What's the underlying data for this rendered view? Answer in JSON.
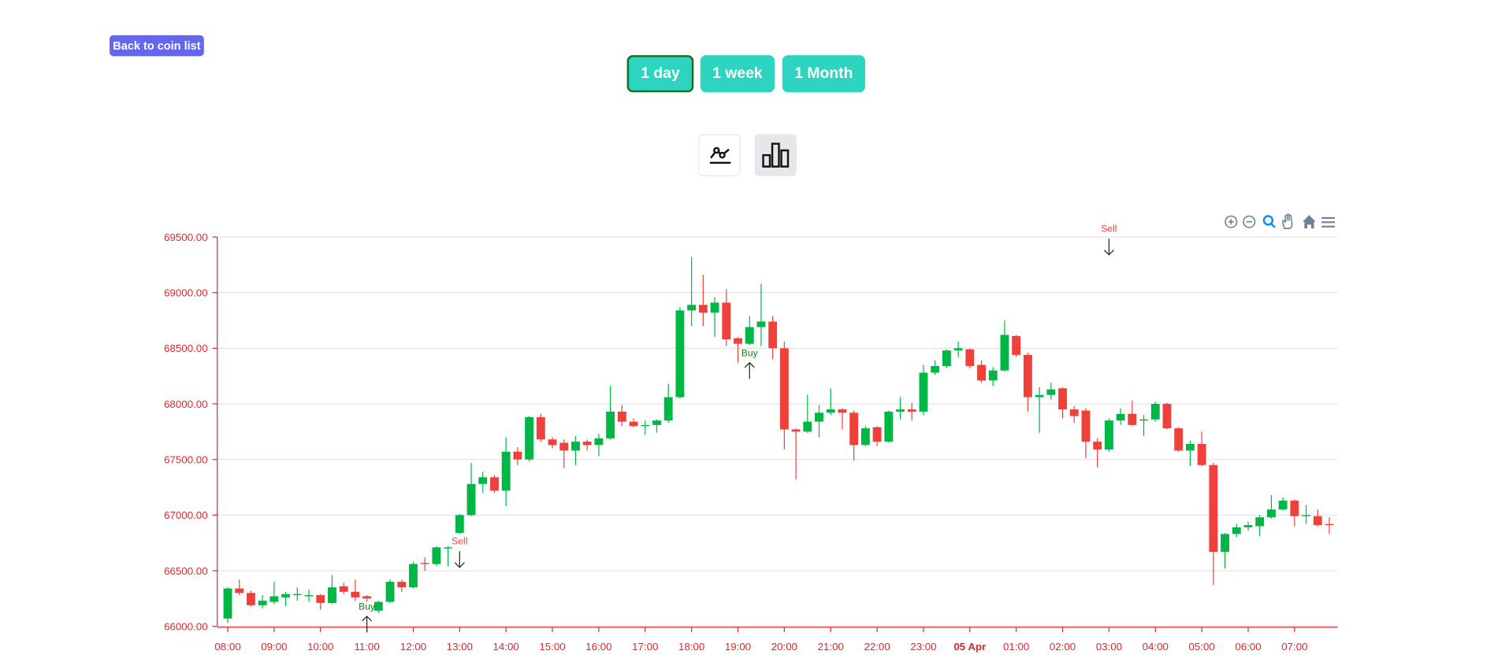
{
  "header": {
    "back_button": "Back to coin list",
    "ranges": [
      "1 day",
      "1 week",
      "1 Month"
    ]
  },
  "chart_data": {
    "type": "candlestick",
    "up_color": "#00b746",
    "down_color": "#ef403c",
    "grid": true,
    "categories": [
      "08:00",
      null,
      null,
      null,
      "09:00",
      null,
      null,
      null,
      "10:00",
      null,
      null,
      null,
      "11:00",
      null,
      null,
      null,
      "12:00",
      null,
      null,
      null,
      "13:00",
      null,
      null,
      null,
      "14:00",
      null,
      null,
      null,
      "15:00",
      null,
      null,
      null,
      "16:00",
      null,
      null,
      null,
      "17:00",
      null,
      null,
      null,
      "18:00",
      null,
      null,
      null,
      "19:00",
      null,
      null,
      null,
      "20:00",
      null,
      null,
      null,
      "21:00",
      null,
      null,
      null,
      "22:00",
      null,
      null,
      null,
      "23:00",
      null,
      null,
      null,
      "05 Apr",
      null,
      null,
      null,
      "01:00",
      null,
      null,
      null,
      "02:00",
      null,
      null,
      null,
      "03:00",
      null,
      null,
      null,
      "04:00",
      null,
      null,
      null,
      "05:00",
      null,
      null,
      null,
      "06:00",
      null,
      null,
      null,
      "07:00",
      null,
      null,
      null
    ],
    "open": [
      66070,
      66340,
      66300,
      66190,
      66220,
      66260,
      66280,
      66270,
      66280,
      66210,
      66360,
      66310,
      66270,
      66140,
      66220,
      66400,
      66350,
      66570,
      66560,
      66700,
      66840,
      67000,
      67280,
      67340,
      67220,
      67570,
      67500,
      67880,
      67680,
      67650,
      67580,
      67660,
      67630,
      67690,
      67930,
      67840,
      67800,
      67810,
      67850,
      68060,
      68840,
      68890,
      68820,
      68910,
      68590,
      68540,
      68690,
      68740,
      68500,
      67770,
      67750,
      67840,
      67920,
      67950,
      67920,
      67630,
      67790,
      67660,
      67930,
      67950,
      67930,
      68280,
      68340,
      68480,
      68490,
      68350,
      68210,
      68300,
      68610,
      68440,
      68060,
      68080,
      68140,
      67950,
      67940,
      67660,
      67590,
      67850,
      67910,
      67850,
      67860,
      68000,
      67780,
      67580,
      67640,
      67450,
      66670,
      66830,
      66890,
      66900,
      66980,
      67050,
      67130,
      66990,
      66990,
      66920
    ],
    "high": [
      66350,
      66420,
      66320,
      66280,
      66400,
      66310,
      66350,
      66330,
      66290,
      66460,
      66390,
      66420,
      66280,
      66230,
      66420,
      66420,
      66580,
      66620,
      66720,
      66720,
      67010,
      67470,
      67390,
      67360,
      67700,
      67610,
      67890,
      67910,
      67700,
      67680,
      67710,
      67680,
      67730,
      68160,
      67990,
      67870,
      67850,
      67860,
      68180,
      68870,
      69320,
      69160,
      68960,
      69030,
      68600,
      68790,
      69080,
      68790,
      68560,
      67780,
      68080,
      67990,
      68140,
      67960,
      67940,
      67800,
      67800,
      67940,
      68060,
      68010,
      68350,
      68390,
      68490,
      68560,
      68500,
      68390,
      68330,
      68750,
      68620,
      68460,
      68150,
      68190,
      68150,
      67980,
      67960,
      67690,
      67870,
      67960,
      68030,
      67900,
      68020,
      68010,
      67790,
      67670,
      67750,
      67470,
      66840,
      66920,
      66940,
      67000,
      67180,
      67160,
      67140,
      67090,
      67050,
      66980
    ],
    "low": [
      66030,
      66280,
      66180,
      66160,
      66200,
      66180,
      66230,
      66220,
      66150,
      66200,
      66290,
      66230,
      66220,
      66120,
      66210,
      66310,
      66340,
      66500,
      66540,
      66540,
      66830,
      66990,
      67200,
      67200,
      67080,
      67450,
      67480,
      67660,
      67600,
      67420,
      67450,
      67580,
      67530,
      67680,
      67800,
      67790,
      67720,
      67740,
      67830,
      68050,
      68700,
      68700,
      68600,
      68520,
      68370,
      68530,
      68520,
      68400,
      67590,
      67320,
      67740,
      67700,
      67900,
      67770,
      67490,
      67620,
      67620,
      67650,
      67860,
      67850,
      67900,
      68260,
      68320,
      68420,
      68320,
      68190,
      68160,
      68290,
      68420,
      67930,
      67740,
      68040,
      67870,
      67830,
      67510,
      67430,
      67570,
      67810,
      67800,
      67710,
      67840,
      67770,
      67570,
      67440,
      67440,
      66370,
      66520,
      66800,
      66860,
      66810,
      66970,
      67040,
      66900,
      66920,
      66900,
      66830
    ],
    "close": [
      66340,
      66300,
      66190,
      66230,
      66270,
      66290,
      66290,
      66280,
      66210,
      66350,
      66310,
      66260,
      66250,
      66220,
      66400,
      66350,
      66560,
      66560,
      66710,
      66710,
      67000,
      67280,
      67340,
      67220,
      67570,
      67500,
      67880,
      67680,
      67630,
      67580,
      67660,
      67630,
      67690,
      67930,
      67840,
      67800,
      67810,
      67850,
      68060,
      68840,
      68890,
      68820,
      68910,
      68580,
      68540,
      68690,
      68740,
      68500,
      67770,
      67750,
      67840,
      67920,
      67950,
      67920,
      67630,
      67780,
      67660,
      67930,
      67950,
      67930,
      68280,
      68340,
      68480,
      68500,
      68340,
      68210,
      68300,
      68620,
      68440,
      68060,
      68080,
      68130,
      67950,
      67890,
      67660,
      67590,
      67850,
      67910,
      67810,
      67860,
      68000,
      67780,
      67580,
      67640,
      67450,
      66670,
      66830,
      66890,
      66910,
      66980,
      67050,
      67130,
      66990,
      67000,
      66910,
      66910
    ],
    "ylim": [
      66000,
      69500
    ],
    "yticks": [
      {
        "value": 66000,
        "label": "66000.00"
      },
      {
        "value": 66500,
        "label": "66500.00"
      },
      {
        "value": 67000,
        "label": "67000.00"
      },
      {
        "value": 67500,
        "label": "67500.00"
      },
      {
        "value": 68000,
        "label": "68000.00"
      },
      {
        "value": 68500,
        "label": "68500.00"
      },
      {
        "value": 69000,
        "label": "69000.00"
      },
      {
        "value": 69500,
        "label": "69500.00"
      }
    ],
    "annotations": [
      {
        "label": "Buy",
        "y": 66090,
        "color": "#1f7a1f"
      },
      {
        "label": "Sell",
        "y": 66530,
        "color": "#ef403c"
      },
      {
        "label": "Buy",
        "y": 68370,
        "color": "#1f7a1f"
      },
      {
        "label": "Sell",
        "y": 69340,
        "color": "#ef403c"
      }
    ]
  }
}
